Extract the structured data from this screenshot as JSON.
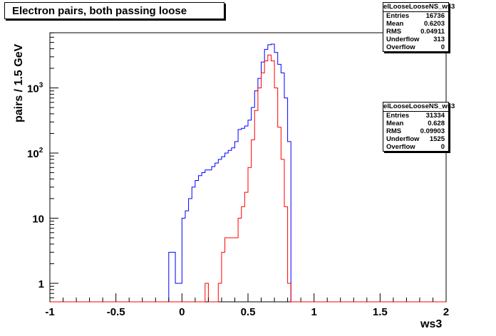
{
  "title": "Electron pairs, both passing loose",
  "stats_boxes": [
    {
      "name": "elLooseLooseNS_ws3",
      "rows": [
        {
          "label": "Entries",
          "value": "16736"
        },
        {
          "label": "Mean",
          "value": "0.6203"
        },
        {
          "label": "RMS",
          "value": "0.04911"
        },
        {
          "label": "Underflow",
          "value": "313"
        },
        {
          "label": "Overflow",
          "value": "0"
        }
      ]
    },
    {
      "name": "elLooseLooseNS_ws3",
      "rows": [
        {
          "label": "Entries",
          "value": "31334"
        },
        {
          "label": "Mean",
          "value": "0.628"
        },
        {
          "label": "RMS",
          "value": "0.09903"
        },
        {
          "label": "Underflow",
          "value": "1525"
        },
        {
          "label": "Overflow",
          "value": "0"
        }
      ]
    }
  ],
  "chart_data": {
    "type": "histogram",
    "title": "Electron pairs, both passing loose",
    "xlabel": "ws3",
    "ylabel": "pairs / 1.5 GeV",
    "xlim": [
      -1,
      2
    ],
    "ylim": [
      0.55,
      9000
    ],
    "yscale": "log",
    "grid": false,
    "x_ticks": [
      "-1",
      "-0.5",
      "0",
      "0.5",
      "1",
      "1.5",
      "2"
    ],
    "y_ticks": [
      "1",
      "10",
      "10^3",
      "10^2"
    ],
    "bin_width": 0.025,
    "series": [
      {
        "color": "#0000ff",
        "bins": [
          [
            -0.1,
            3
          ],
          [
            -0.075,
            3
          ],
          [
            -0.05,
            1
          ],
          [
            -0.025,
            1
          ],
          [
            0,
            10
          ],
          [
            0.025,
            13
          ],
          [
            0.05,
            20
          ],
          [
            0.075,
            30
          ],
          [
            0.1,
            38
          ],
          [
            0.125,
            45
          ],
          [
            0.15,
            50
          ],
          [
            0.175,
            55
          ],
          [
            0.2,
            55
          ],
          [
            0.225,
            62
          ],
          [
            0.25,
            70
          ],
          [
            0.275,
            80
          ],
          [
            0.3,
            88
          ],
          [
            0.325,
            100
          ],
          [
            0.35,
            110
          ],
          [
            0.375,
            120
          ],
          [
            0.4,
            150
          ],
          [
            0.425,
            230
          ],
          [
            0.45,
            240
          ],
          [
            0.475,
            260
          ],
          [
            0.5,
            320
          ],
          [
            0.525,
            500
          ],
          [
            0.55,
            900
          ],
          [
            0.575,
            1400
          ],
          [
            0.6,
            2500
          ],
          [
            0.625,
            3900
          ],
          [
            0.65,
            4600
          ],
          [
            0.675,
            4700
          ],
          [
            0.7,
            3500
          ],
          [
            0.725,
            2300
          ],
          [
            0.75,
            1700
          ],
          [
            0.775,
            700
          ],
          [
            0.8,
            150
          ]
        ]
      },
      {
        "color": "#ff0000",
        "bins": [
          [
            0.175,
            1
          ],
          [
            0.275,
            1
          ],
          [
            0.3,
            3
          ],
          [
            0.325,
            5
          ],
          [
            0.35,
            5
          ],
          [
            0.375,
            5
          ],
          [
            0.4,
            5
          ],
          [
            0.425,
            10
          ],
          [
            0.45,
            15
          ],
          [
            0.475,
            25
          ],
          [
            0.5,
            60
          ],
          [
            0.525,
            160
          ],
          [
            0.55,
            450
          ],
          [
            0.575,
            1000
          ],
          [
            0.6,
            1700
          ],
          [
            0.625,
            2600
          ],
          [
            0.65,
            3200
          ],
          [
            0.675,
            2600
          ],
          [
            0.7,
            1000
          ],
          [
            0.725,
            250
          ],
          [
            0.75,
            80
          ],
          [
            0.775,
            15
          ],
          [
            0.8,
            1
          ]
        ]
      }
    ]
  }
}
